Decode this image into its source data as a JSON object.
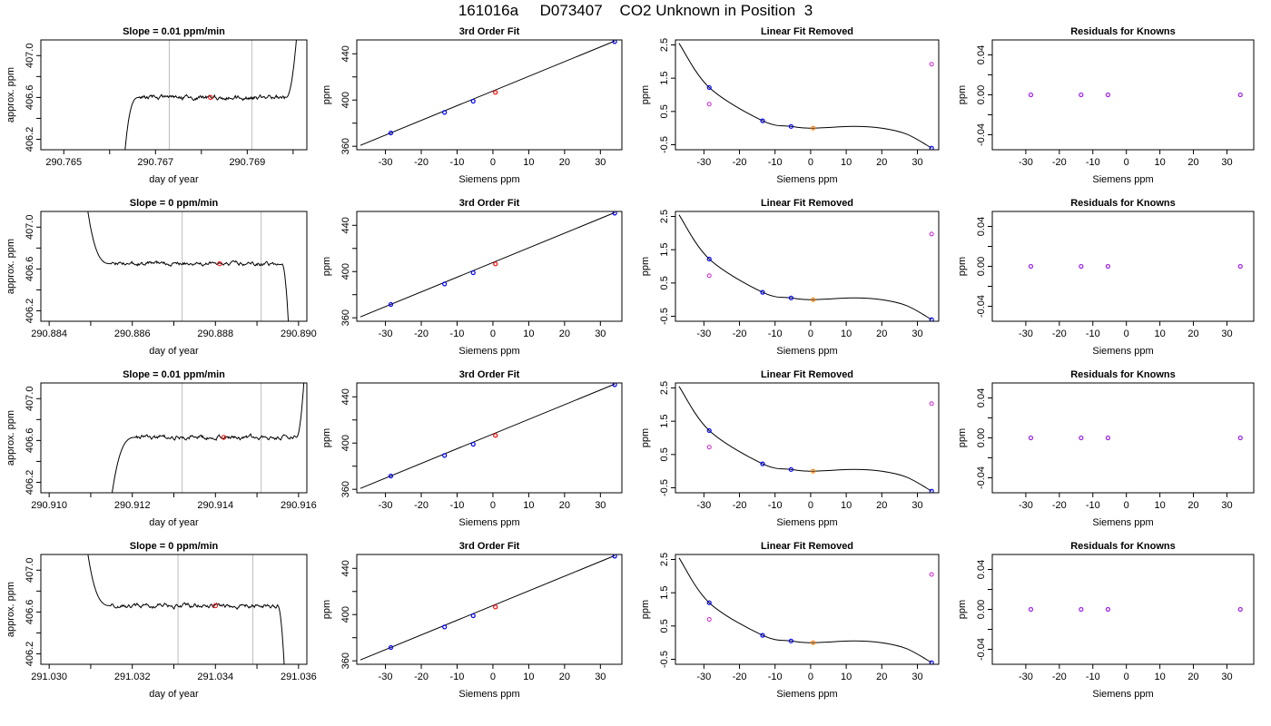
{
  "page": {
    "title": "161016a     D073407    CO2 Unknown in Position  3"
  },
  "colors": {
    "axis": "#000000",
    "trace": "#000000",
    "vline": "#bdbdbd",
    "known": "#0000ff",
    "unknown": "#ff0000",
    "unknown_fit": "#ff7f00",
    "residual_marker": "#a020f0",
    "raw_known": "#d020d0"
  },
  "chart_data": [
    {
      "type": "line",
      "title": "Slope =  0.01  ppm/min",
      "xlabel": "day of year",
      "ylabel": "approx. ppm",
      "xlim": [
        290.7645,
        290.7703
      ],
      "ylim": [
        406.1,
        407.15
      ],
      "xticks": [
        290.765,
        290.766,
        290.767,
        290.768,
        290.769,
        290.77
      ],
      "xtick_labels": [
        "290.765",
        "",
        "290.767",
        "",
        "290.769",
        ""
      ],
      "yticks": [
        406.2,
        406.4,
        406.6,
        406.8,
        407.0
      ],
      "ytick_labels": [
        "406.2",
        "",
        "406.6",
        "",
        "407.0"
      ],
      "vlines": [
        290.7673,
        290.7691
      ],
      "trace": {
        "t0": 290.7663,
        "rise_end": 290.76665,
        "flat_end": 290.76985,
        "t1": 290.7701,
        "y_start": 405.9,
        "plateau": 406.6,
        "y_end": 407.3,
        "seed": 1
      },
      "marker": {
        "x": 290.7682,
        "y": 406.6
      }
    },
    {
      "type": "line",
      "title": "3rd Order Fit",
      "xlabel": "Siemens ppm",
      "ylabel": "ppm",
      "xlim": [
        -38,
        36
      ],
      "ylim": [
        357,
        452
      ],
      "xticks": [
        -30,
        -20,
        -10,
        0,
        10,
        20,
        30
      ],
      "xtick_labels": [
        "-30",
        "-20",
        "-10",
        "0",
        "10",
        "20",
        "30"
      ],
      "yticks": [
        360,
        380,
        400,
        420,
        440
      ],
      "ytick_labels": [
        "360",
        "",
        "400",
        "",
        "440"
      ],
      "line": [
        [
          -37,
          360.8
        ],
        [
          34,
          451.0
        ]
      ],
      "knowns": [
        [
          -28.5,
          371.5
        ],
        [
          -13.5,
          389.3
        ],
        [
          -5.5,
          399.0
        ],
        [
          34,
          450.5
        ]
      ],
      "unknown": [
        0.7,
        406.6
      ]
    },
    {
      "type": "line",
      "title": "Linear Fit Removed",
      "xlabel": "Siemens ppm",
      "ylabel": "ppm",
      "xlim": [
        -38,
        36
      ],
      "ylim": [
        -0.65,
        2.65
      ],
      "xticks": [
        -30,
        -20,
        -10,
        0,
        10,
        20,
        30
      ],
      "xtick_labels": [
        "-30",
        "-20",
        "-10",
        "0",
        "10",
        "20",
        "30"
      ],
      "yticks": [
        -0.5,
        0.5,
        1.5,
        2.5
      ],
      "ytick_labels": [
        "-0.5",
        "0.5",
        "1.5",
        "2.5"
      ],
      "curve_points": [
        [
          -37,
          2.55
        ],
        [
          -28.5,
          1.22
        ],
        [
          -13.5,
          0.22
        ],
        [
          -5.5,
          0.05
        ],
        [
          0.7,
          0.0
        ],
        [
          12,
          0.05
        ],
        [
          20,
          0.0
        ],
        [
          27,
          -0.18
        ],
        [
          34,
          -0.6
        ]
      ],
      "knowns": [
        [
          -28.5,
          1.22
        ],
        [
          -13.5,
          0.22
        ],
        [
          -5.5,
          0.05
        ],
        [
          34,
          -0.6
        ]
      ],
      "raw_knowns": [
        [
          -28.5,
          0.72
        ],
        [
          34,
          1.92
        ]
      ],
      "unknown": [
        0.7,
        0.0
      ]
    },
    {
      "type": "scatter",
      "title": "Residuals for Knowns",
      "xlabel": "Siemens ppm",
      "ylabel": "ppm",
      "xlim": [
        -40,
        38
      ],
      "ylim": [
        -0.055,
        0.055
      ],
      "xticks": [
        -30,
        -20,
        -10,
        0,
        10,
        20,
        30
      ],
      "xtick_labels": [
        "-30",
        "-20",
        "-10",
        "0",
        "10",
        "20",
        "30"
      ],
      "yticks": [
        -0.04,
        -0.02,
        0.0,
        0.02,
        0.04
      ],
      "ytick_labels": [
        "-0.04",
        "",
        "0.00",
        "",
        "0.04"
      ],
      "points": [
        [
          -28.5,
          0.0
        ],
        [
          -13.5,
          0.0
        ],
        [
          -5.5,
          0.0
        ],
        [
          34,
          0.0
        ]
      ]
    },
    {
      "type": "line",
      "title": "Slope =  0  ppm/min",
      "xlabel": "day of year",
      "ylabel": "approx. ppm",
      "xlim": [
        290.8838,
        290.8902
      ],
      "ylim": [
        406.1,
        407.15
      ],
      "xticks": [
        290.884,
        290.885,
        290.886,
        290.887,
        290.888,
        290.889,
        290.89
      ],
      "xtick_labels": [
        "290.884",
        "",
        "290.886",
        "",
        "290.888",
        "",
        "290.890"
      ],
      "yticks": [
        406.2,
        406.4,
        406.6,
        406.8,
        407.0
      ],
      "ytick_labels": [
        "406.2",
        "",
        "406.6",
        "",
        "407.0"
      ],
      "vlines": [
        290.8872,
        290.8891
      ],
      "trace": {
        "t0": 290.88485,
        "rise_end": 290.8855,
        "flat_end": 290.8896,
        "t1": 290.88978,
        "y_start": 407.4,
        "plateau": 406.65,
        "y_end": 405.9,
        "seed": 2
      },
      "marker": {
        "x": 290.8881,
        "y": 406.65
      }
    },
    {
      "type": "line",
      "title": "3rd Order Fit",
      "xlabel": "Siemens ppm",
      "ylabel": "ppm",
      "xlim": [
        -38,
        36
      ],
      "ylim": [
        357,
        452
      ],
      "xticks": [
        -30,
        -20,
        -10,
        0,
        10,
        20,
        30
      ],
      "xtick_labels": [
        "-30",
        "-20",
        "-10",
        "0",
        "10",
        "20",
        "30"
      ],
      "yticks": [
        360,
        380,
        400,
        420,
        440
      ],
      "ytick_labels": [
        "360",
        "",
        "400",
        "",
        "440"
      ],
      "line": [
        [
          -37,
          360.8
        ],
        [
          34,
          451.0
        ]
      ],
      "knowns": [
        [
          -28.5,
          371.5
        ],
        [
          -13.5,
          389.3
        ],
        [
          -5.5,
          399.0
        ],
        [
          34,
          450.5
        ]
      ],
      "unknown": [
        0.7,
        406.6
      ]
    },
    {
      "type": "line",
      "title": "Linear Fit Removed",
      "xlabel": "Siemens ppm",
      "ylabel": "ppm",
      "xlim": [
        -38,
        36
      ],
      "ylim": [
        -0.65,
        2.65
      ],
      "xticks": [
        -30,
        -20,
        -10,
        0,
        10,
        20,
        30
      ],
      "xtick_labels": [
        "-30",
        "-20",
        "-10",
        "0",
        "10",
        "20",
        "30"
      ],
      "yticks": [
        -0.5,
        0.5,
        1.5,
        2.5
      ],
      "ytick_labels": [
        "-0.5",
        "0.5",
        "1.5",
        "2.5"
      ],
      "curve_points": [
        [
          -37,
          2.55
        ],
        [
          -28.5,
          1.22
        ],
        [
          -13.5,
          0.22
        ],
        [
          -5.5,
          0.05
        ],
        [
          0.7,
          0.0
        ],
        [
          12,
          0.05
        ],
        [
          20,
          0.0
        ],
        [
          27,
          -0.18
        ],
        [
          34,
          -0.6
        ]
      ],
      "knowns": [
        [
          -28.5,
          1.22
        ],
        [
          -13.5,
          0.22
        ],
        [
          -5.5,
          0.05
        ],
        [
          34,
          -0.6
        ]
      ],
      "raw_knowns": [
        [
          -28.5,
          0.72
        ],
        [
          34,
          1.97
        ]
      ],
      "unknown": [
        0.7,
        0.0
      ]
    },
    {
      "type": "scatter",
      "title": "Residuals for Knowns",
      "xlabel": "Siemens ppm",
      "ylabel": "ppm",
      "xlim": [
        -40,
        38
      ],
      "ylim": [
        -0.055,
        0.055
      ],
      "xticks": [
        -30,
        -20,
        -10,
        0,
        10,
        20,
        30
      ],
      "xtick_labels": [
        "-30",
        "-20",
        "-10",
        "0",
        "10",
        "20",
        "30"
      ],
      "yticks": [
        -0.04,
        -0.02,
        0.0,
        0.02,
        0.04
      ],
      "ytick_labels": [
        "-0.04",
        "",
        "0.00",
        "",
        "0.04"
      ],
      "points": [
        [
          -28.5,
          0.0
        ],
        [
          -13.5,
          0.0
        ],
        [
          -5.5,
          0.0
        ],
        [
          34,
          0.0
        ]
      ]
    },
    {
      "type": "line",
      "title": "Slope =  0.01  ppm/min",
      "xlabel": "day of year",
      "ylabel": "approx. ppm",
      "xlim": [
        290.9098,
        290.9162
      ],
      "ylim": [
        406.1,
        407.15
      ],
      "xticks": [
        290.91,
        290.911,
        290.912,
        290.913,
        290.914,
        290.915,
        290.916
      ],
      "xtick_labels": [
        "290.910",
        "",
        "290.912",
        "",
        "290.914",
        "",
        "290.916"
      ],
      "yticks": [
        406.2,
        406.4,
        406.6,
        406.8,
        407.0
      ],
      "ytick_labels": [
        "406.2",
        "",
        "406.6",
        "",
        "407.0"
      ],
      "vlines": [
        290.9132,
        290.9151
      ],
      "trace": {
        "t0": 290.91145,
        "rise_end": 290.9121,
        "flat_end": 290.91595,
        "t1": 290.91615,
        "y_start": 405.9,
        "plateau": 406.63,
        "y_end": 407.3,
        "seed": 3
      },
      "marker": {
        "x": 290.9142,
        "y": 406.63
      }
    },
    {
      "type": "line",
      "title": "3rd Order Fit",
      "xlabel": "Siemens ppm",
      "ylabel": "ppm",
      "xlim": [
        -38,
        36
      ],
      "ylim": [
        357,
        452
      ],
      "xticks": [
        -30,
        -20,
        -10,
        0,
        10,
        20,
        30
      ],
      "xtick_labels": [
        "-30",
        "-20",
        "-10",
        "0",
        "10",
        "20",
        "30"
      ],
      "yticks": [
        360,
        380,
        400,
        420,
        440
      ],
      "ytick_labels": [
        "360",
        "",
        "400",
        "",
        "440"
      ],
      "line": [
        [
          -37,
          360.8
        ],
        [
          34,
          451.0
        ]
      ],
      "knowns": [
        [
          -28.5,
          371.5
        ],
        [
          -13.5,
          389.3
        ],
        [
          -5.5,
          399.0
        ],
        [
          34,
          450.5
        ]
      ],
      "unknown": [
        0.7,
        406.6
      ]
    },
    {
      "type": "line",
      "title": "Linear Fit Removed",
      "xlabel": "Siemens ppm",
      "ylabel": "ppm",
      "xlim": [
        -38,
        36
      ],
      "ylim": [
        -0.65,
        2.65
      ],
      "xticks": [
        -30,
        -20,
        -10,
        0,
        10,
        20,
        30
      ],
      "xtick_labels": [
        "-30",
        "-20",
        "-10",
        "0",
        "10",
        "20",
        "30"
      ],
      "yticks": [
        -0.5,
        0.5,
        1.5,
        2.5
      ],
      "ytick_labels": [
        "-0.5",
        "0.5",
        "1.5",
        "2.5"
      ],
      "curve_points": [
        [
          -37,
          2.55
        ],
        [
          -28.5,
          1.22
        ],
        [
          -13.5,
          0.22
        ],
        [
          -5.5,
          0.05
        ],
        [
          0.7,
          0.0
        ],
        [
          12,
          0.05
        ],
        [
          20,
          0.0
        ],
        [
          27,
          -0.18
        ],
        [
          34,
          -0.6
        ]
      ],
      "knowns": [
        [
          -28.5,
          1.22
        ],
        [
          -13.5,
          0.22
        ],
        [
          -5.5,
          0.05
        ],
        [
          34,
          -0.6
        ]
      ],
      "raw_knowns": [
        [
          -28.5,
          0.72
        ],
        [
          34,
          2.03
        ]
      ],
      "unknown": [
        0.7,
        0.0
      ]
    },
    {
      "type": "scatter",
      "title": "Residuals for Knowns",
      "xlabel": "Siemens ppm",
      "ylabel": "ppm",
      "xlim": [
        -40,
        38
      ],
      "ylim": [
        -0.055,
        0.055
      ],
      "xticks": [
        -30,
        -20,
        -10,
        0,
        10,
        20,
        30
      ],
      "xtick_labels": [
        "-30",
        "-20",
        "-10",
        "0",
        "10",
        "20",
        "30"
      ],
      "yticks": [
        -0.04,
        -0.02,
        0.0,
        0.02,
        0.04
      ],
      "ytick_labels": [
        "-0.04",
        "",
        "0.00",
        "",
        "0.04"
      ],
      "points": [
        [
          -28.5,
          0.0
        ],
        [
          -13.5,
          0.0
        ],
        [
          -5.5,
          0.0
        ],
        [
          34,
          0.0
        ]
      ]
    },
    {
      "type": "line",
      "title": "Slope =  0  ppm/min",
      "xlabel": "day of year",
      "ylabel": "approx. ppm",
      "xlim": [
        291.0298,
        291.0362
      ],
      "ylim": [
        406.1,
        407.15
      ],
      "xticks": [
        291.03,
        291.031,
        291.032,
        291.033,
        291.034,
        291.035,
        291.036
      ],
      "xtick_labels": [
        "291.030",
        "",
        "291.032",
        "",
        "291.034",
        "",
        "291.036"
      ],
      "yticks": [
        406.2,
        406.4,
        406.6,
        406.8,
        407.0
      ],
      "ytick_labels": [
        "406.2",
        "",
        "406.6",
        "",
        "407.0"
      ],
      "vlines": [
        291.0331,
        291.0349
      ],
      "trace": {
        "t0": 291.03085,
        "rise_end": 291.0315,
        "flat_end": 291.0355,
        "t1": 291.03568,
        "y_start": 407.4,
        "plateau": 406.66,
        "y_end": 405.9,
        "seed": 4
      },
      "marker": {
        "x": 291.034,
        "y": 406.66
      }
    },
    {
      "type": "line",
      "title": "3rd Order Fit",
      "xlabel": "Siemens ppm",
      "ylabel": "ppm",
      "xlim": [
        -38,
        36
      ],
      "ylim": [
        357,
        452
      ],
      "xticks": [
        -30,
        -20,
        -10,
        0,
        10,
        20,
        30
      ],
      "xtick_labels": [
        "-30",
        "-20",
        "-10",
        "0",
        "10",
        "20",
        "30"
      ],
      "yticks": [
        360,
        380,
        400,
        420,
        440
      ],
      "ytick_labels": [
        "360",
        "",
        "400",
        "",
        "440"
      ],
      "line": [
        [
          -37,
          360.8
        ],
        [
          34,
          451.0
        ]
      ],
      "knowns": [
        [
          -28.5,
          371.5
        ],
        [
          -13.5,
          389.3
        ],
        [
          -5.5,
          399.0
        ],
        [
          34,
          450.5
        ]
      ],
      "unknown": [
        0.7,
        406.6
      ]
    },
    {
      "type": "line",
      "title": "Linear Fit Removed",
      "xlabel": "Siemens ppm",
      "ylabel": "ppm",
      "xlim": [
        -38,
        36
      ],
      "ylim": [
        -0.65,
        2.65
      ],
      "xticks": [
        -30,
        -20,
        -10,
        0,
        10,
        20,
        30
      ],
      "xtick_labels": [
        "-30",
        "-20",
        "-10",
        "0",
        "10",
        "20",
        "30"
      ],
      "yticks": [
        -0.5,
        0.5,
        1.5,
        2.5
      ],
      "ytick_labels": [
        "-0.5",
        "0.5",
        "1.5",
        "2.5"
      ],
      "curve_points": [
        [
          -37,
          2.55
        ],
        [
          -28.5,
          1.2
        ],
        [
          -13.5,
          0.22
        ],
        [
          -5.5,
          0.05
        ],
        [
          0.7,
          0.0
        ],
        [
          12,
          0.05
        ],
        [
          20,
          0.0
        ],
        [
          27,
          -0.18
        ],
        [
          34,
          -0.6
        ]
      ],
      "knowns": [
        [
          -28.5,
          1.2
        ],
        [
          -13.5,
          0.22
        ],
        [
          -5.5,
          0.05
        ],
        [
          34,
          -0.6
        ]
      ],
      "raw_knowns": [
        [
          -28.5,
          0.7
        ],
        [
          34,
          2.05
        ]
      ],
      "unknown": [
        0.7,
        0.0
      ]
    },
    {
      "type": "scatter",
      "title": "Residuals for Knowns",
      "xlabel": "Siemens ppm",
      "ylabel": "ppm",
      "xlim": [
        -40,
        38
      ],
      "ylim": [
        -0.055,
        0.055
      ],
      "xticks": [
        -30,
        -20,
        -10,
        0,
        10,
        20,
        30
      ],
      "xtick_labels": [
        "-30",
        "-20",
        "-10",
        "0",
        "10",
        "20",
        "30"
      ],
      "yticks": [
        -0.04,
        -0.02,
        0.0,
        0.02,
        0.04
      ],
      "ytick_labels": [
        "-0.04",
        "",
        "0.00",
        "",
        "0.04"
      ],
      "points": [
        [
          -28.5,
          0.0
        ],
        [
          -13.5,
          0.0
        ],
        [
          -5.5,
          0.0
        ],
        [
          34,
          0.0
        ]
      ]
    }
  ]
}
